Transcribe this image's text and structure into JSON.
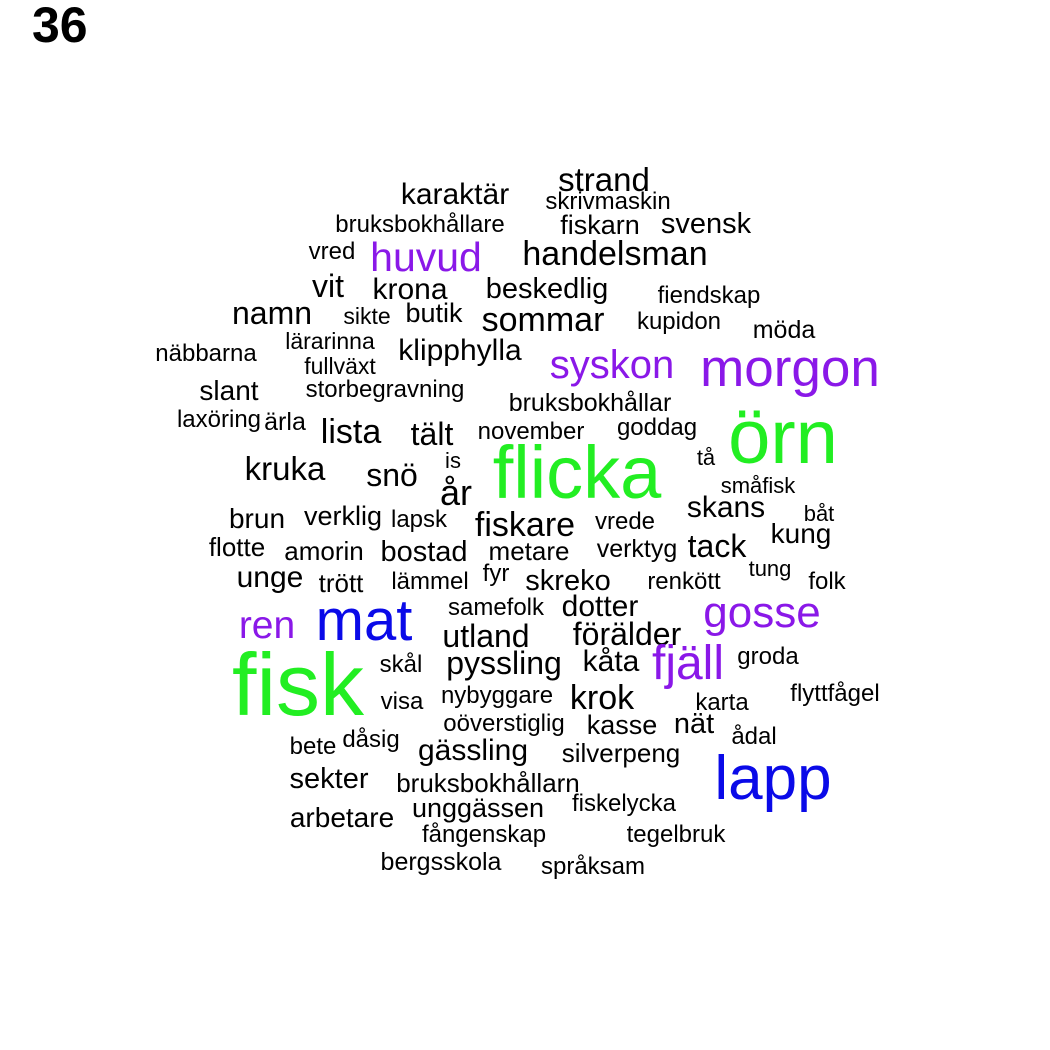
{
  "label": "36",
  "colors": {
    "large": "#22ee22",
    "medium": "#0a0ae8",
    "accent": "#8a18e8",
    "base": "#000000"
  },
  "words": [
    {
      "text": "strand",
      "color": "base"
    },
    {
      "text": "karaktär",
      "color": "base"
    },
    {
      "text": "skrivmaskin",
      "color": "base"
    },
    {
      "text": "bruksbokhållare",
      "color": "base"
    },
    {
      "text": "fiskarn",
      "color": "base"
    },
    {
      "text": "svensk",
      "color": "base"
    },
    {
      "text": "vred",
      "color": "base"
    },
    {
      "text": "huvud",
      "color": "accent"
    },
    {
      "text": "handelsman",
      "color": "base"
    },
    {
      "text": "vit",
      "color": "base"
    },
    {
      "text": "krona",
      "color": "base"
    },
    {
      "text": "beskedlig",
      "color": "base"
    },
    {
      "text": "fiendskap",
      "color": "base"
    },
    {
      "text": "namn",
      "color": "base"
    },
    {
      "text": "sikte",
      "color": "base"
    },
    {
      "text": "butik",
      "color": "base"
    },
    {
      "text": "sommar",
      "color": "base"
    },
    {
      "text": "kupidon",
      "color": "base"
    },
    {
      "text": "möda",
      "color": "base"
    },
    {
      "text": "lärarinna",
      "color": "base"
    },
    {
      "text": "näbbarna",
      "color": "base"
    },
    {
      "text": "klipphylla",
      "color": "base"
    },
    {
      "text": "fullväxt",
      "color": "base"
    },
    {
      "text": "syskon",
      "color": "accent"
    },
    {
      "text": "morgon",
      "color": "accent"
    },
    {
      "text": "slant",
      "color": "base"
    },
    {
      "text": "storbegravning",
      "color": "base"
    },
    {
      "text": "bruksbokhållar",
      "color": "base"
    },
    {
      "text": "laxöring",
      "color": "base"
    },
    {
      "text": "ärla",
      "color": "base"
    },
    {
      "text": "lista",
      "color": "base"
    },
    {
      "text": "tält",
      "color": "base"
    },
    {
      "text": "november",
      "color": "base"
    },
    {
      "text": "goddag",
      "color": "base"
    },
    {
      "text": "örn",
      "color": "large"
    },
    {
      "text": "is",
      "color": "base"
    },
    {
      "text": "flicka",
      "color": "large"
    },
    {
      "text": "tå",
      "color": "base"
    },
    {
      "text": "kruka",
      "color": "base"
    },
    {
      "text": "snö",
      "color": "base"
    },
    {
      "text": "år",
      "color": "base"
    },
    {
      "text": "småfisk",
      "color": "base"
    },
    {
      "text": "brun",
      "color": "base"
    },
    {
      "text": "verklig",
      "color": "base"
    },
    {
      "text": "lapsk",
      "color": "base"
    },
    {
      "text": "fiskare",
      "color": "base"
    },
    {
      "text": "vrede",
      "color": "base"
    },
    {
      "text": "skans",
      "color": "base"
    },
    {
      "text": "båt",
      "color": "base"
    },
    {
      "text": "flotte",
      "color": "base"
    },
    {
      "text": "amorin",
      "color": "base"
    },
    {
      "text": "bostad",
      "color": "base"
    },
    {
      "text": "metare",
      "color": "base"
    },
    {
      "text": "verktyg",
      "color": "base"
    },
    {
      "text": "tack",
      "color": "base"
    },
    {
      "text": "kung",
      "color": "base"
    },
    {
      "text": "unge",
      "color": "base"
    },
    {
      "text": "trött",
      "color": "base"
    },
    {
      "text": "lämmel",
      "color": "base"
    },
    {
      "text": "fyr",
      "color": "base"
    },
    {
      "text": "skreko",
      "color": "base"
    },
    {
      "text": "renkött",
      "color": "base"
    },
    {
      "text": "tung",
      "color": "base"
    },
    {
      "text": "folk",
      "color": "base"
    },
    {
      "text": "samefolk",
      "color": "base"
    },
    {
      "text": "dotter",
      "color": "base"
    },
    {
      "text": "gosse",
      "color": "accent"
    },
    {
      "text": "ren",
      "color": "accent"
    },
    {
      "text": "mat",
      "color": "medium"
    },
    {
      "text": "utland",
      "color": "base"
    },
    {
      "text": "förälder",
      "color": "base"
    },
    {
      "text": "fisk",
      "color": "large"
    },
    {
      "text": "skål",
      "color": "base"
    },
    {
      "text": "pyssling",
      "color": "base"
    },
    {
      "text": "kåta",
      "color": "base"
    },
    {
      "text": "fjäll",
      "color": "accent"
    },
    {
      "text": "groda",
      "color": "base"
    },
    {
      "text": "visa",
      "color": "base"
    },
    {
      "text": "nybyggare",
      "color": "base"
    },
    {
      "text": "krok",
      "color": "base"
    },
    {
      "text": "karta",
      "color": "base"
    },
    {
      "text": "flyttfågel",
      "color": "base"
    },
    {
      "text": "oöverstiglig",
      "color": "base"
    },
    {
      "text": "kasse",
      "color": "base"
    },
    {
      "text": "nät",
      "color": "base"
    },
    {
      "text": "ådal",
      "color": "base"
    },
    {
      "text": "bete",
      "color": "base"
    },
    {
      "text": "dåsig",
      "color": "base"
    },
    {
      "text": "gässling",
      "color": "base"
    },
    {
      "text": "silverpeng",
      "color": "base"
    },
    {
      "text": "lapp",
      "color": "medium"
    },
    {
      "text": "sekter",
      "color": "base"
    },
    {
      "text": "bruksbokhållarn",
      "color": "base"
    },
    {
      "text": "unggässen",
      "color": "base"
    },
    {
      "text": "fiskelycka",
      "color": "base"
    },
    {
      "text": "arbetare",
      "color": "base"
    },
    {
      "text": "fångenskap",
      "color": "base"
    },
    {
      "text": "tegelbruk",
      "color": "base"
    },
    {
      "text": "bergsskola",
      "color": "base"
    },
    {
      "text": "språksam",
      "color": "base"
    }
  ]
}
